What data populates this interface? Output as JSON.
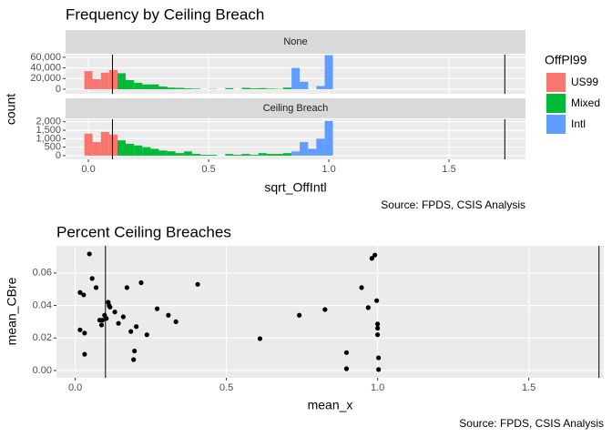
{
  "chart_data": [
    {
      "type": "histogram",
      "title": "Frequency by Ceiling Breach",
      "x_label": "sqrt_OffIntl",
      "y_label": "count",
      "caption": "Source: FPDS, CSIS Analysis",
      "legend_title": "OffPl99",
      "legend": "right",
      "series": [
        {
          "name": "US99",
          "color": "#F8766D"
        },
        {
          "name": "Mixed",
          "color": "#00BA38"
        },
        {
          "name": "Intl",
          "color": "#619CFF"
        }
      ],
      "bins": [
        -0.017,
        0.017,
        0.052,
        0.086,
        0.121,
        0.155,
        0.19,
        0.224,
        0.259,
        0.293,
        0.328,
        0.362,
        0.397,
        0.431,
        0.466,
        0.5,
        0.534,
        0.569,
        0.603,
        0.638,
        0.672,
        0.707,
        0.741,
        0.776,
        0.81,
        0.845,
        0.879,
        0.914,
        0.948,
        0.983,
        1.017
      ],
      "xlim": [
        -0.095,
        1.818
      ],
      "xticks": [
        {
          "value": 0,
          "label": "0.0"
        },
        0.5,
        {
          "value": 1,
          "label": "1.0"
        },
        1.5
      ],
      "vlines": [
        0.1,
        1.732
      ],
      "grid": true,
      "facets": [
        {
          "label": "None",
          "ylim": [
            -8600,
            65000
          ],
          "yticks": [
            0,
            {
              "value": 20000,
              "label": "20,000"
            },
            {
              "value": 40000,
              "label": "40,000"
            },
            {
              "value": 60000,
              "label": "60,000"
            }
          ],
          "values": [
            [
              34000,
              19000,
              31000,
              36000,
              0,
              0,
              0,
              0,
              0,
              0,
              0,
              0,
              0,
              0,
              0,
              0,
              0,
              0,
              0,
              0,
              0,
              0,
              0,
              0,
              0,
              0,
              0,
              0,
              0,
              0
            ],
            [
              0,
              0,
              0,
              0,
              30000,
              17000,
              12000,
              9000,
              9000,
              5000,
              3000,
              2500,
              1500,
              1000,
              0,
              500,
              0,
              2000,
              0,
              2500,
              1500,
              2000,
              1000,
              500,
              3000,
              0,
              0,
              0,
              0,
              0
            ],
            [
              0,
              0,
              0,
              0,
              0,
              0,
              0,
              0,
              0,
              0,
              0,
              0,
              0,
              0,
              0,
              0,
              0,
              0,
              0,
              0,
              0,
              0,
              0,
              0,
              0,
              40000,
              14000,
              0,
              6000,
              64000
            ]
          ]
        },
        {
          "label": "Ceiling Breach",
          "ylim": [
            -220,
            2150
          ],
          "yticks": [
            0,
            500,
            {
              "value": 1000,
              "label": "1,000"
            },
            {
              "value": 1500,
              "label": "1,500"
            },
            {
              "value": 2000,
              "label": "2,000"
            }
          ],
          "values": [
            [
              1300,
              800,
              1400,
              1250,
              0,
              0,
              0,
              0,
              0,
              0,
              0,
              0,
              0,
              0,
              0,
              0,
              0,
              0,
              0,
              0,
              0,
              0,
              0,
              0,
              0,
              0,
              0,
              0,
              0,
              0
            ],
            [
              0,
              0,
              0,
              0,
              900,
              700,
              600,
              500,
              400,
              300,
              250,
              150,
              250,
              100,
              50,
              50,
              0,
              100,
              50,
              100,
              50,
              150,
              100,
              100,
              150,
              0,
              0,
              0,
              0,
              0
            ],
            [
              0,
              0,
              0,
              0,
              0,
              0,
              0,
              0,
              0,
              0,
              0,
              0,
              0,
              0,
              0,
              0,
              0,
              0,
              0,
              0,
              0,
              0,
              0,
              0,
              0,
              250,
              800,
              400,
              1000,
              2050
            ]
          ]
        }
      ]
    },
    {
      "type": "scatter",
      "title": "Percent Ceiling Breaches",
      "x_label": "mean_x",
      "y_label": "mean_CBre",
      "caption": "Source: FPDS, CSIS Analysis",
      "color": "#000000",
      "xlim": [
        -0.062,
        1.748
      ],
      "ylim": [
        -0.0045,
        0.0767
      ],
      "xticks": [
        {
          "value": 0,
          "label": "0.0"
        },
        0.5,
        {
          "value": 1,
          "label": "1.0"
        },
        1.5
      ],
      "yticks": [
        {
          "value": 0,
          "label": "0.00"
        },
        {
          "value": 0.02,
          "label": "0.02"
        },
        {
          "value": 0.04,
          "label": "0.04"
        },
        {
          "value": 0.06,
          "label": "0.06"
        }
      ],
      "vlines": [
        0.1,
        1.732
      ],
      "grid": true,
      "x": [
        0.047,
        0.056,
        0.028,
        0.016,
        0.069,
        0.109,
        0.112,
        0.115,
        0.131,
        0.097,
        0.103,
        0.09,
        0.081,
        0.087,
        0.143,
        0.159,
        0.171,
        0.218,
        0.271,
        0.308,
        0.333,
        0.405,
        0.016,
        0.031,
        0.031,
        0.202,
        0.237,
        0.184,
        0.196,
        0.193,
        0.611,
        0.741,
        0.826,
        0.897,
        0.897,
        0.947,
        0.969,
        0.981,
        0.991,
        0.997,
        1.0,
        1.0,
        1.0,
        1.003,
        1.003
      ],
      "values": [
        0.0717,
        0.0566,
        0.0465,
        0.048,
        0.051,
        0.042,
        0.04,
        0.039,
        0.036,
        0.034,
        0.032,
        0.031,
        0.031,
        0.028,
        0.029,
        0.033,
        0.051,
        0.054,
        0.038,
        0.034,
        0.03,
        0.053,
        0.025,
        0.023,
        0.01,
        0.027,
        0.022,
        0.024,
        0.012,
        0.0067,
        0.0196,
        0.034,
        0.0375,
        0.011,
        0.0011,
        0.051,
        0.0387,
        0.069,
        0.071,
        0.043,
        0.0286,
        0.026,
        0.022,
        0.0078,
        0.0006
      ]
    }
  ]
}
